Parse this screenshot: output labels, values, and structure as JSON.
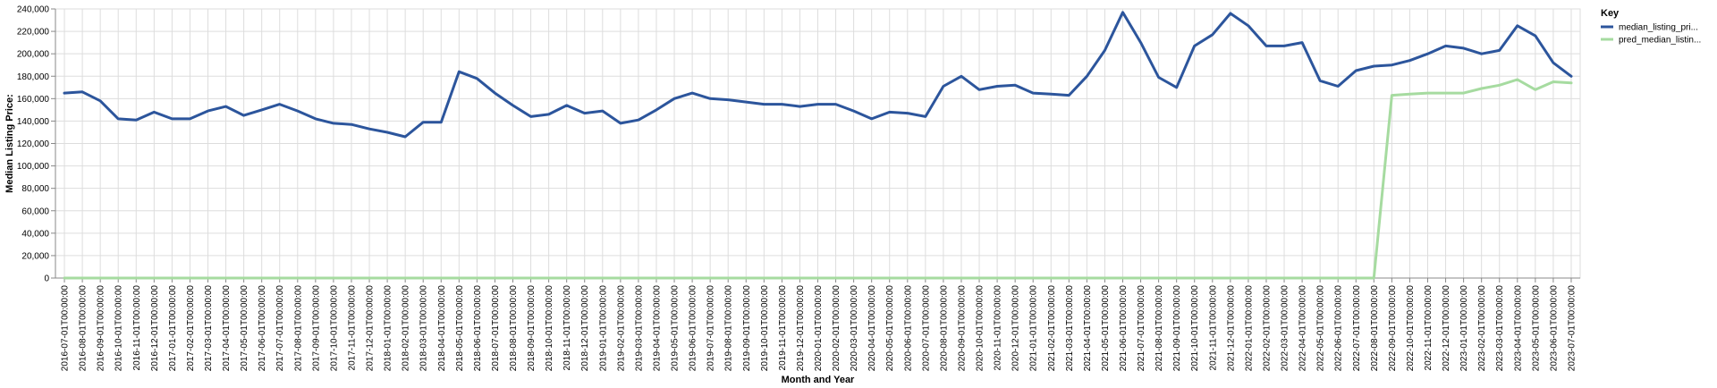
{
  "chart_data": {
    "type": "line",
    "xlabel": "Month and Year",
    "ylabel": "Median Listing Price:",
    "ylim": [
      0,
      240000
    ],
    "yticks": [
      "0",
      "20,000",
      "40,000",
      "60,000",
      "80,000",
      "100,000",
      "120,000",
      "140,000",
      "160,000",
      "180,000",
      "200,000",
      "220,000",
      "240,000"
    ],
    "grid": true,
    "legend": {
      "title": "Key",
      "position": "right"
    },
    "x": [
      "2016-07-01T00:00:00",
      "2016-08-01T00:00:00",
      "2016-09-01T00:00:00",
      "2016-10-01T00:00:00",
      "2016-11-01T00:00:00",
      "2016-12-01T00:00:00",
      "2017-01-01T00:00:00",
      "2017-02-01T00:00:00",
      "2017-03-01T00:00:00",
      "2017-04-01T00:00:00",
      "2017-05-01T00:00:00",
      "2017-06-01T00:00:00",
      "2017-07-01T00:00:00",
      "2017-08-01T00:00:00",
      "2017-09-01T00:00:00",
      "2017-10-01T00:00:00",
      "2017-11-01T00:00:00",
      "2017-12-01T00:00:00",
      "2018-01-01T00:00:00",
      "2018-02-01T00:00:00",
      "2018-03-01T00:00:00",
      "2018-04-01T00:00:00",
      "2018-05-01T00:00:00",
      "2018-06-01T00:00:00",
      "2018-07-01T00:00:00",
      "2018-08-01T00:00:00",
      "2018-09-01T00:00:00",
      "2018-10-01T00:00:00",
      "2018-11-01T00:00:00",
      "2018-12-01T00:00:00",
      "2019-01-01T00:00:00",
      "2019-02-01T00:00:00",
      "2019-03-01T00:00:00",
      "2019-04-01T00:00:00",
      "2019-05-01T00:00:00",
      "2019-06-01T00:00:00",
      "2019-07-01T00:00:00",
      "2019-08-01T00:00:00",
      "2019-09-01T00:00:00",
      "2019-10-01T00:00:00",
      "2019-11-01T00:00:00",
      "2019-12-01T00:00:00",
      "2020-01-01T00:00:00",
      "2020-02-01T00:00:00",
      "2020-03-01T00:00:00",
      "2020-04-01T00:00:00",
      "2020-05-01T00:00:00",
      "2020-06-01T00:00:00",
      "2020-07-01T00:00:00",
      "2020-08-01T00:00:00",
      "2020-09-01T00:00:00",
      "2020-10-01T00:00:00",
      "2020-11-01T00:00:00",
      "2020-12-01T00:00:00",
      "2021-01-01T00:00:00",
      "2021-02-01T00:00:00",
      "2021-03-01T00:00:00",
      "2021-04-01T00:00:00",
      "2021-05-01T00:00:00",
      "2021-06-01T00:00:00",
      "2021-07-01T00:00:00",
      "2021-08-01T00:00:00",
      "2021-09-01T00:00:00",
      "2021-10-01T00:00:00",
      "2021-11-01T00:00:00",
      "2021-12-01T00:00:00",
      "2022-01-01T00:00:00",
      "2022-02-01T00:00:00",
      "2022-03-01T00:00:00",
      "2022-04-01T00:00:00",
      "2022-05-01T00:00:00",
      "2022-06-01T00:00:00",
      "2022-07-01T00:00:00",
      "2022-08-01T00:00:00",
      "2022-09-01T00:00:00",
      "2022-10-01T00:00:00",
      "2022-11-01T00:00:00",
      "2022-12-01T00:00:00",
      "2023-01-01T00:00:00",
      "2023-02-01T00:00:00",
      "2023-03-01T00:00:00",
      "2023-04-01T00:00:00",
      "2023-05-01T00:00:00",
      "2023-06-01T00:00:00",
      "2023-07-01T00:00:00"
    ],
    "series": [
      {
        "name": "median_listing_pri...",
        "color": "#2c559c",
        "values": [
          165000,
          166000,
          158000,
          142000,
          141000,
          148000,
          142000,
          142000,
          149000,
          153000,
          145000,
          150000,
          155000,
          149000,
          142000,
          138000,
          137000,
          133000,
          130000,
          126000,
          139000,
          139000,
          184000,
          178000,
          165000,
          154000,
          144000,
          146000,
          154000,
          147000,
          149000,
          138000,
          141000,
          150000,
          160000,
          165000,
          160000,
          159000,
          157000,
          155000,
          155000,
          153000,
          155000,
          155000,
          149000,
          142000,
          148000,
          147000,
          144000,
          171000,
          180000,
          168000,
          171000,
          172000,
          165000,
          164000,
          163000,
          180000,
          203000,
          237000,
          210000,
          179000,
          170000,
          207000,
          217000,
          236000,
          225000,
          207000,
          207000,
          210000,
          176000,
          171000,
          185000,
          189000,
          190000,
          194000,
          200000,
          207000,
          205000,
          200000,
          203000,
          225000,
          216000,
          192000,
          180000
        ]
      },
      {
        "name": "pred_median_listin...",
        "color": "#a6dba0",
        "values": [
          0,
          0,
          0,
          0,
          0,
          0,
          0,
          0,
          0,
          0,
          0,
          0,
          0,
          0,
          0,
          0,
          0,
          0,
          0,
          0,
          0,
          0,
          0,
          0,
          0,
          0,
          0,
          0,
          0,
          0,
          0,
          0,
          0,
          0,
          0,
          0,
          0,
          0,
          0,
          0,
          0,
          0,
          0,
          0,
          0,
          0,
          0,
          0,
          0,
          0,
          0,
          0,
          0,
          0,
          0,
          0,
          0,
          0,
          0,
          0,
          0,
          0,
          0,
          0,
          0,
          0,
          0,
          0,
          0,
          0,
          0,
          0,
          0,
          0,
          163000,
          164000,
          165000,
          165000,
          165000,
          169000,
          172000,
          177000,
          168000,
          175000,
          174000
        ]
      }
    ]
  }
}
